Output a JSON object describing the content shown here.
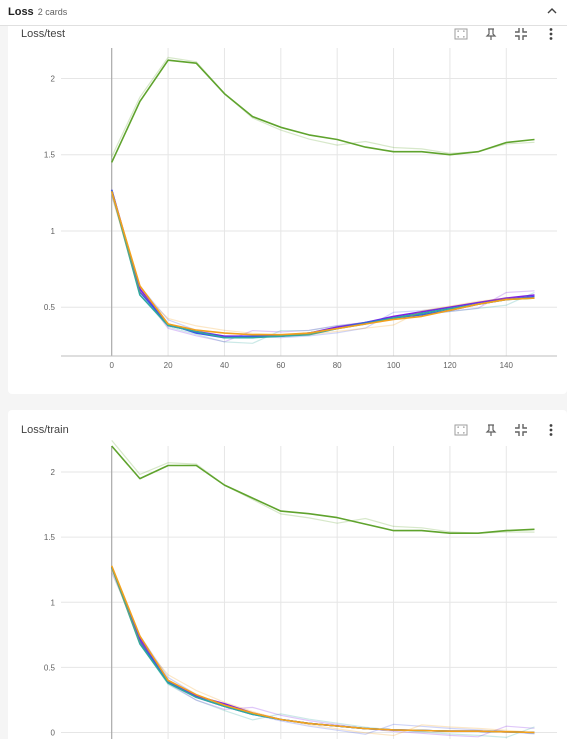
{
  "group": {
    "title": "Loss",
    "count": "2 cards"
  },
  "icons": {
    "collapse": "chevron-up-icon",
    "fullscreen": "fullscreen-icon",
    "pin": "pin-icon",
    "fit": "fit-domain-icon",
    "menu": "more-vert-icon"
  },
  "colors": {
    "green": "#5fa32d",
    "purple": "#7e1fe6",
    "blue": "#3c54e8",
    "teal": "#2ea8a0",
    "orange": "#f3a11c",
    "axis": "#9e9e9e",
    "grid": "#e6e6e6"
  },
  "chart_data": [
    {
      "title": "Loss/test",
      "type": "line",
      "xticks": [
        "0",
        "20",
        "40",
        "60",
        "80",
        "100",
        "120",
        "140"
      ],
      "yticks": [
        "0.5",
        "1",
        "1.5",
        "2"
      ],
      "xlim": [
        -18,
        158
      ],
      "ylim": [
        0.18,
        2.2
      ],
      "x": [
        0,
        10,
        20,
        30,
        40,
        50,
        60,
        70,
        80,
        90,
        100,
        110,
        120,
        130,
        140,
        150
      ],
      "series": [
        {
          "values": [
            1.45,
            1.85,
            2.12,
            2.1,
            1.9,
            1.75,
            1.68,
            1.63,
            1.6,
            1.55,
            1.52,
            1.52,
            1.5,
            1.52,
            1.58,
            1.6
          ]
        },
        {
          "values": [
            1.27,
            0.62,
            0.38,
            0.34,
            0.31,
            0.31,
            0.31,
            0.33,
            0.37,
            0.4,
            0.44,
            0.47,
            0.5,
            0.53,
            0.56,
            0.58
          ]
        },
        {
          "values": [
            1.27,
            0.6,
            0.39,
            0.33,
            0.3,
            0.31,
            0.31,
            0.33,
            0.36,
            0.4,
            0.43,
            0.45,
            0.48,
            0.52,
            0.55,
            0.57
          ]
        },
        {
          "values": [
            1.26,
            0.58,
            0.38,
            0.34,
            0.3,
            0.3,
            0.31,
            0.32,
            0.36,
            0.39,
            0.43,
            0.46,
            0.49,
            0.52,
            0.55,
            0.56
          ]
        },
        {
          "values": [
            1.26,
            0.64,
            0.39,
            0.35,
            0.33,
            0.32,
            0.32,
            0.33,
            0.36,
            0.39,
            0.42,
            0.44,
            0.48,
            0.52,
            0.55,
            0.56
          ]
        }
      ]
    },
    {
      "title": "Loss/train",
      "type": "line",
      "xticks": [],
      "yticks": [
        "0",
        "0.5",
        "1",
        "1.5",
        "2"
      ],
      "xlim": [
        -18,
        158
      ],
      "ylim": [
        -0.05,
        2.2
      ],
      "x": [
        0,
        10,
        20,
        30,
        40,
        50,
        60,
        70,
        80,
        90,
        100,
        110,
        120,
        130,
        140,
        150
      ],
      "series": [
        {
          "values": [
            2.2,
            1.95,
            2.05,
            2.05,
            1.9,
            1.8,
            1.7,
            1.68,
            1.65,
            1.6,
            1.55,
            1.55,
            1.53,
            1.53,
            1.55,
            1.56
          ]
        },
        {
          "values": [
            1.27,
            0.72,
            0.4,
            0.28,
            0.22,
            0.15,
            0.1,
            0.07,
            0.05,
            0.03,
            0.02,
            0.015,
            0.01,
            0.01,
            0.005,
            0.0
          ]
        },
        {
          "values": [
            1.27,
            0.7,
            0.39,
            0.27,
            0.2,
            0.14,
            0.1,
            0.07,
            0.05,
            0.03,
            0.02,
            0.015,
            0.01,
            0.01,
            0.005,
            0.0
          ]
        },
        {
          "values": [
            1.27,
            0.68,
            0.38,
            0.27,
            0.2,
            0.14,
            0.1,
            0.07,
            0.05,
            0.03,
            0.02,
            0.015,
            0.01,
            0.01,
            0.005,
            0.0
          ]
        },
        {
          "values": [
            1.28,
            0.74,
            0.4,
            0.29,
            0.21,
            0.15,
            0.1,
            0.07,
            0.05,
            0.03,
            0.02,
            0.015,
            0.01,
            0.01,
            0.005,
            0.0
          ]
        }
      ]
    }
  ]
}
